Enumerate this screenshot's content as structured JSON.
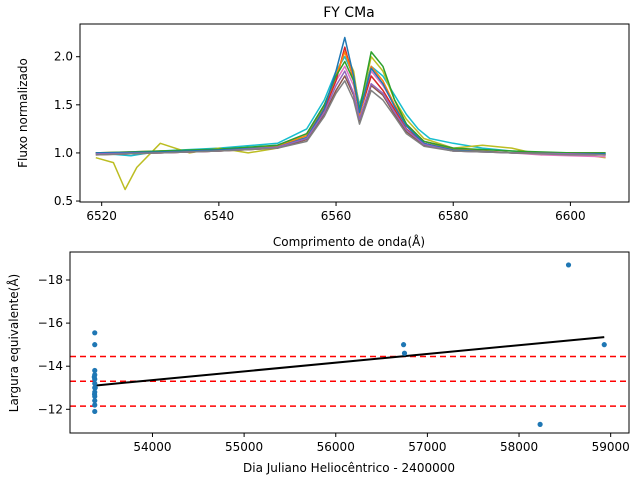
{
  "chart_data": [
    {
      "type": "line",
      "title": "FY CMa",
      "xlabel": "Comprimento de onda(Å)",
      "ylabel": "Fluxo normalizado",
      "xlim": [
        6516.3,
        6610.0
      ],
      "ylim": [
        0.49,
        2.34
      ],
      "xticks": [
        6520,
        6540,
        6560,
        6580,
        6600
      ],
      "yticks": [
        0.5,
        1.0,
        1.5,
        2.0
      ],
      "ytick_labels": [
        "0.5",
        "1.0",
        "1.5",
        "2.0"
      ],
      "grid": false,
      "series": [
        {
          "color": "#17becf",
          "values": [
            [
              6519,
              1.0
            ],
            [
              6525,
              0.97
            ],
            [
              6530,
              1.02
            ],
            [
              6540,
              1.05
            ],
            [
              6550,
              1.1
            ],
            [
              6555,
              1.25
            ],
            [
              6558,
              1.55
            ],
            [
              6560,
              1.85
            ],
            [
              6561.5,
              2.0
            ],
            [
              6563,
              1.8
            ],
            [
              6564,
              1.5
            ],
            [
              6566,
              1.9
            ],
            [
              6568,
              1.8
            ],
            [
              6570,
              1.6
            ],
            [
              6572,
              1.4
            ],
            [
              6574,
              1.25
            ],
            [
              6576,
              1.15
            ],
            [
              6580,
              1.1
            ],
            [
              6585,
              1.05
            ],
            [
              6590,
              1.02
            ],
            [
              6595,
              1.0
            ],
            [
              6600,
              1.0
            ],
            [
              6606,
              0.99
            ]
          ]
        },
        {
          "color": "#bcbd22",
          "values": [
            [
              6519,
              0.95
            ],
            [
              6522,
              0.9
            ],
            [
              6524,
              0.62
            ],
            [
              6526,
              0.85
            ],
            [
              6530,
              1.1
            ],
            [
              6535,
              1.0
            ],
            [
              6540,
              1.05
            ],
            [
              6545,
              1.0
            ],
            [
              6550,
              1.05
            ],
            [
              6555,
              1.18
            ],
            [
              6558,
              1.45
            ],
            [
              6560,
              1.8
            ],
            [
              6561.5,
              2.05
            ],
            [
              6563,
              1.85
            ],
            [
              6564,
              1.45
            ],
            [
              6566,
              2.0
            ],
            [
              6568,
              1.85
            ],
            [
              6570,
              1.55
            ],
            [
              6572,
              1.35
            ],
            [
              6575,
              1.15
            ],
            [
              6580,
              1.05
            ],
            [
              6585,
              1.08
            ],
            [
              6590,
              1.05
            ],
            [
              6595,
              0.98
            ],
            [
              6600,
              1.0
            ],
            [
              6606,
              0.95
            ]
          ]
        },
        {
          "color": "#e377c2",
          "values": [
            [
              6519,
              1.0
            ],
            [
              6525,
              1.0
            ],
            [
              6530,
              1.0
            ],
            [
              6540,
              1.02
            ],
            [
              6550,
              1.08
            ],
            [
              6555,
              1.2
            ],
            [
              6558,
              1.5
            ],
            [
              6560,
              1.75
            ],
            [
              6561.5,
              1.9
            ],
            [
              6563,
              1.7
            ],
            [
              6564,
              1.4
            ],
            [
              6566,
              1.85
            ],
            [
              6568,
              1.7
            ],
            [
              6570,
              1.5
            ],
            [
              6572,
              1.3
            ],
            [
              6575,
              1.12
            ],
            [
              6580,
              1.05
            ],
            [
              6585,
              1.02
            ],
            [
              6590,
              1.0
            ],
            [
              6595,
              0.98
            ],
            [
              6600,
              0.97
            ],
            [
              6606,
              0.96
            ]
          ]
        },
        {
          "color": "#d62728",
          "values": [
            [
              6519,
              1.0
            ],
            [
              6530,
              1.0
            ],
            [
              6540,
              1.02
            ],
            [
              6550,
              1.05
            ],
            [
              6555,
              1.15
            ],
            [
              6558,
              1.45
            ],
            [
              6560,
              1.75
            ],
            [
              6561.5,
              2.1
            ],
            [
              6563,
              1.75
            ],
            [
              6564,
              1.4
            ],
            [
              6566,
              1.8
            ],
            [
              6568,
              1.65
            ],
            [
              6570,
              1.45
            ],
            [
              6572,
              1.25
            ],
            [
              6575,
              1.1
            ],
            [
              6580,
              1.03
            ],
            [
              6590,
              1.0
            ],
            [
              6600,
              1.0
            ],
            [
              6606,
              1.0
            ]
          ]
        },
        {
          "color": "#ff7f0e",
          "values": [
            [
              6519,
              1.0
            ],
            [
              6530,
              1.02
            ],
            [
              6540,
              1.03
            ],
            [
              6550,
              1.07
            ],
            [
              6555,
              1.18
            ],
            [
              6558,
              1.48
            ],
            [
              6560,
              1.8
            ],
            [
              6561.5,
              2.05
            ],
            [
              6563,
              1.78
            ],
            [
              6564,
              1.38
            ],
            [
              6566,
              1.9
            ],
            [
              6568,
              1.75
            ],
            [
              6570,
              1.5
            ],
            [
              6572,
              1.3
            ],
            [
              6575,
              1.12
            ],
            [
              6580,
              1.04
            ],
            [
              6590,
              1.0
            ],
            [
              6600,
              0.99
            ],
            [
              6606,
              0.98
            ]
          ]
        },
        {
          "color": "#2ca02c",
          "values": [
            [
              6519,
              1.0
            ],
            [
              6530,
              1.02
            ],
            [
              6540,
              1.04
            ],
            [
              6550,
              1.08
            ],
            [
              6555,
              1.2
            ],
            [
              6558,
              1.5
            ],
            [
              6560,
              1.8
            ],
            [
              6561.5,
              1.95
            ],
            [
              6563,
              1.75
            ],
            [
              6564,
              1.45
            ],
            [
              6566,
              2.05
            ],
            [
              6568,
              1.9
            ],
            [
              6570,
              1.55
            ],
            [
              6572,
              1.3
            ],
            [
              6575,
              1.12
            ],
            [
              6580,
              1.05
            ],
            [
              6590,
              1.02
            ],
            [
              6600,
              1.0
            ],
            [
              6606,
              1.0
            ]
          ]
        },
        {
          "color": "#1f77b4",
          "values": [
            [
              6519,
              1.0
            ],
            [
              6530,
              1.01
            ],
            [
              6540,
              1.03
            ],
            [
              6550,
              1.06
            ],
            [
              6555,
              1.16
            ],
            [
              6558,
              1.46
            ],
            [
              6560,
              1.85
            ],
            [
              6561.5,
              2.2
            ],
            [
              6563,
              1.8
            ],
            [
              6564,
              1.42
            ],
            [
              6566,
              1.88
            ],
            [
              6568,
              1.72
            ],
            [
              6570,
              1.48
            ],
            [
              6572,
              1.28
            ],
            [
              6575,
              1.1
            ],
            [
              6580,
              1.03
            ],
            [
              6590,
              1.0
            ],
            [
              6600,
              0.99
            ],
            [
              6606,
              0.99
            ]
          ]
        },
        {
          "color": "#8c564b",
          "values": [
            [
              6519,
              0.98
            ],
            [
              6530,
              1.0
            ],
            [
              6540,
              1.02
            ],
            [
              6550,
              1.05
            ],
            [
              6555,
              1.14
            ],
            [
              6558,
              1.4
            ],
            [
              6560,
              1.65
            ],
            [
              6561.5,
              1.8
            ],
            [
              6563,
              1.6
            ],
            [
              6564,
              1.32
            ],
            [
              6566,
              1.7
            ],
            [
              6568,
              1.6
            ],
            [
              6570,
              1.4
            ],
            [
              6572,
              1.22
            ],
            [
              6575,
              1.08
            ],
            [
              6580,
              1.02
            ],
            [
              6590,
              1.0
            ],
            [
              6600,
              0.99
            ],
            [
              6606,
              0.98
            ]
          ]
        },
        {
          "color": "#9467bd",
          "values": [
            [
              6519,
              0.99
            ],
            [
              6530,
              1.0
            ],
            [
              6540,
              1.02
            ],
            [
              6550,
              1.06
            ],
            [
              6555,
              1.15
            ],
            [
              6558,
              1.42
            ],
            [
              6560,
              1.7
            ],
            [
              6561.5,
              1.85
            ],
            [
              6563,
              1.62
            ],
            [
              6564,
              1.35
            ],
            [
              6566,
              1.72
            ],
            [
              6568,
              1.62
            ],
            [
              6570,
              1.42
            ],
            [
              6572,
              1.24
            ],
            [
              6575,
              1.09
            ],
            [
              6580,
              1.02
            ],
            [
              6590,
              1.0
            ],
            [
              6600,
              0.99
            ],
            [
              6606,
              0.98
            ]
          ]
        },
        {
          "color": "#7f7f7f",
          "values": [
            [
              6519,
              0.98
            ],
            [
              6530,
              1.0
            ],
            [
              6540,
              1.02
            ],
            [
              6550,
              1.05
            ],
            [
              6555,
              1.12
            ],
            [
              6558,
              1.38
            ],
            [
              6560,
              1.62
            ],
            [
              6561.5,
              1.75
            ],
            [
              6563,
              1.55
            ],
            [
              6564,
              1.3
            ],
            [
              6566,
              1.65
            ],
            [
              6568,
              1.55
            ],
            [
              6570,
              1.38
            ],
            [
              6572,
              1.2
            ],
            [
              6575,
              1.07
            ],
            [
              6580,
              1.02
            ],
            [
              6590,
              1.0
            ],
            [
              6600,
              0.98
            ],
            [
              6606,
              0.98
            ]
          ]
        }
      ]
    },
    {
      "type": "scatter",
      "xlabel": "Dia Juliano Heliocêntrico - 2400000",
      "ylabel": "Largura equivalente(Å)",
      "xlim": [
        53100,
        59200
      ],
      "ylim": [
        -10.9,
        -19.3
      ],
      "y_inverted": true,
      "xticks": [
        54000,
        55000,
        56000,
        57000,
        58000,
        59000
      ],
      "yticks": [
        -12,
        -14,
        -16,
        -18
      ],
      "ytick_labels": [
        "−12",
        "−14",
        "−16",
        "−18"
      ],
      "grid": false,
      "points": {
        "color": "#1f77b4",
        "values": [
          [
            53370,
            -15.55
          ],
          [
            53370,
            -15.0
          ],
          [
            53370,
            -13.8
          ],
          [
            53370,
            -13.6
          ],
          [
            53370,
            -13.4
          ],
          [
            53370,
            -13.2
          ],
          [
            53370,
            -13.0
          ],
          [
            53370,
            -12.8
          ],
          [
            53370,
            -12.6
          ],
          [
            53370,
            -12.4
          ],
          [
            53370,
            -12.2
          ],
          [
            53370,
            -11.9
          ],
          [
            53365,
            -13.5
          ],
          [
            53375,
            -13.0
          ],
          [
            53368,
            -12.7
          ],
          [
            56740,
            -15.0
          ],
          [
            56750,
            -14.6
          ],
          [
            58230,
            -11.3
          ],
          [
            58540,
            -18.7
          ],
          [
            58930,
            -15.0
          ]
        ]
      },
      "fit_line": {
        "color": "#000000",
        "values": [
          [
            53370,
            -13.1
          ],
          [
            58930,
            -15.35
          ]
        ]
      },
      "hlines": {
        "color": "#ff0000",
        "style": "dashed",
        "values": [
          -12.15,
          -13.3,
          -14.45
        ]
      }
    }
  ]
}
